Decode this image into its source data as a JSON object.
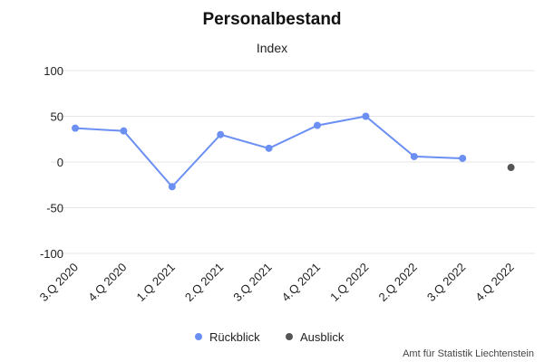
{
  "chart_data": {
    "type": "line",
    "title": "Personalbestand",
    "subtitle": "Index",
    "categories": [
      "3.Q 2020",
      "4.Q 2020",
      "1.Q 2021",
      "2.Q 2021",
      "3.Q 2021",
      "4.Q 2021",
      "1.Q 2022",
      "2.Q 2022",
      "3.Q 2022",
      "4.Q 2022"
    ],
    "ylim": [
      -100,
      100
    ],
    "yticks": [
      100,
      50,
      0,
      -50,
      -100
    ],
    "grid": true,
    "legend_position": "bottom-center",
    "series": [
      {
        "name": "Rückblick",
        "color": "#6b8ff2",
        "values": [
          37,
          34,
          -27,
          30,
          15,
          40,
          50,
          6,
          4,
          null
        ],
        "line": true
      },
      {
        "name": "Ausblick",
        "color": "#555555",
        "values": [
          null,
          null,
          null,
          null,
          null,
          null,
          null,
          null,
          null,
          -6
        ],
        "line": false
      }
    ],
    "credit": "Amt für Statistik Liechtenstein"
  }
}
